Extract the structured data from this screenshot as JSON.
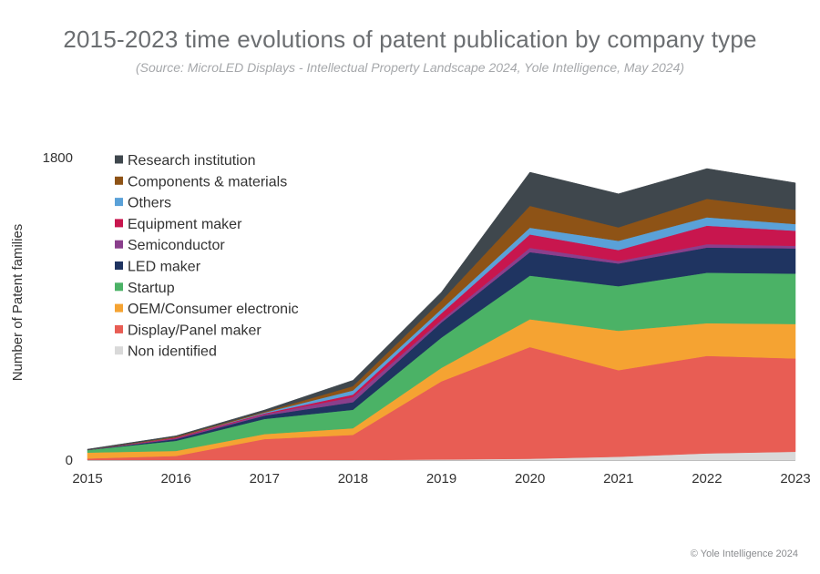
{
  "title": "2015-2023 time evolutions of patent publication by company type",
  "subtitle": "(Source: MicroLED Displays - Intellectual Property Landscape 2024, Yole Intelligence, May 2024)",
  "footer": "© Yole Intelligence 2024",
  "chart_data": {
    "type": "area",
    "stacked": true,
    "x": [
      "2015",
      "2016",
      "2017",
      "2018",
      "2019",
      "2020",
      "2021",
      "2022",
      "2023"
    ],
    "ylabel": "Number of Patent families",
    "ylim": [
      0,
      1800
    ],
    "yticks": [
      "0",
      "1800"
    ],
    "legend_position": "top-left",
    "series": [
      {
        "name": "Non identified",
        "color": "#d9d9d9",
        "values": [
          0,
          0,
          0,
          0,
          4,
          8,
          20,
          40,
          50
        ]
      },
      {
        "name": "Display/Panel maker",
        "color": "#e85d54",
        "values": [
          10,
          25,
          125,
          150,
          465,
          665,
          515,
          580,
          555
        ]
      },
      {
        "name": "OEM/Consumer electronic",
        "color": "#f5a332",
        "values": [
          35,
          30,
          30,
          40,
          80,
          165,
          235,
          195,
          205
        ]
      },
      {
        "name": "Startup",
        "color": "#4bb266",
        "values": [
          15,
          60,
          90,
          110,
          180,
          260,
          265,
          300,
          300
        ]
      },
      {
        "name": "LED maker",
        "color": "#1f3461",
        "values": [
          0,
          10,
          20,
          45,
          90,
          140,
          135,
          150,
          150
        ]
      },
      {
        "name": "Semiconductor",
        "color": "#8a3f8c",
        "values": [
          0,
          5,
          8,
          30,
          15,
          25,
          15,
          20,
          15
        ]
      },
      {
        "name": "Equipment maker",
        "color": "#c8164e",
        "values": [
          0,
          5,
          5,
          15,
          40,
          80,
          65,
          110,
          90
        ]
      },
      {
        "name": "Others",
        "color": "#5aa1d8",
        "values": [
          0,
          0,
          5,
          25,
          25,
          40,
          55,
          50,
          40
        ]
      },
      {
        "name": "Components & materials",
        "color": "#8e5316",
        "values": [
          0,
          5,
          5,
          25,
          50,
          130,
          80,
          110,
          85
        ]
      },
      {
        "name": "Research institution",
        "color": "#3f474d",
        "values": [
          5,
          5,
          10,
          35,
          50,
          200,
          200,
          180,
          160
        ]
      }
    ]
  }
}
